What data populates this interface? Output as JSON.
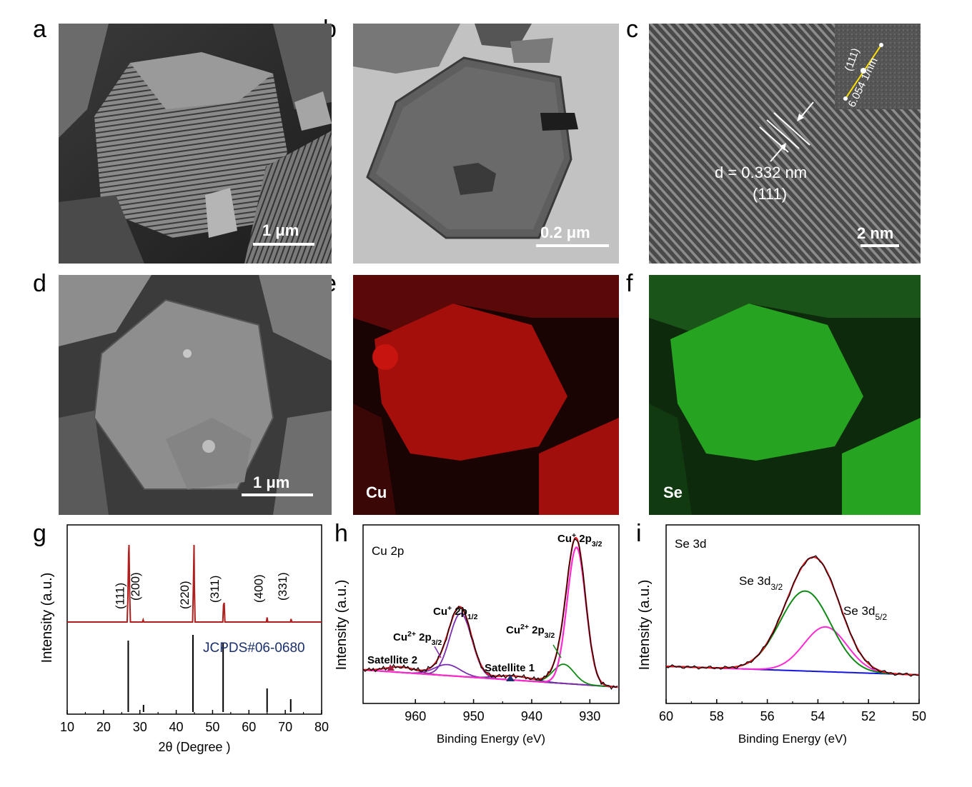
{
  "figure": {
    "letters": {
      "a": "a",
      "b": "b",
      "c": "c",
      "d": "d",
      "e": "e",
      "f": "f",
      "g": "g",
      "h": "h",
      "i": "i"
    }
  },
  "panel_a": {
    "scale_label": "1 μm"
  },
  "panel_b": {
    "scale_label": "0.2 μm"
  },
  "panel_c": {
    "scale_label": "2 nm",
    "d_spacing": "d = 0.332 nm",
    "plane": "(111)",
    "fft_plane": "(111)",
    "fft_distance": "6.054 1/nm"
  },
  "panel_d": {
    "scale_label": "1 μm"
  },
  "panel_e": {
    "element": "Cu",
    "map_color": "#c8120f"
  },
  "panel_f": {
    "element": "Se",
    "map_color": "#2fcf2a"
  },
  "colors": {
    "xrd": "#b01e1e",
    "ref_lines": "#000000",
    "jcpds_text": "#1a2f6e",
    "fit_total": "#e8111b",
    "raw": "#000000",
    "magenta": "#ff2bd0",
    "green": "#0f8a17",
    "purple": "#7b2fb0",
    "blue": "#1414e0",
    "brown": "#7b3a1f",
    "navy": "#1a2f6e"
  },
  "chart_data": [
    {
      "panel": "g",
      "type": "line",
      "xlabel": "2θ (Degree )",
      "ylabel": "Intensity   (a.u.)",
      "xlim": [
        10,
        80
      ],
      "xticks": [
        "10",
        "20",
        "30",
        "40",
        "50",
        "60",
        "70",
        "80"
      ],
      "series": [
        {
          "values_x": [
            10,
            26.5,
            26.7,
            26.9,
            27.0,
            27.2,
            27.4,
            30.7,
            30.9,
            31.1,
            44.5,
            44.7,
            44.9,
            45.0,
            45.2,
            52.8,
            53.0,
            53.2,
            53.4,
            64.8,
            65.0,
            65.2,
            71.4,
            71.6,
            71.8,
            80
          ],
          "values_y": [
            0,
            0,
            30,
            88,
            100,
            35,
            0,
            0,
            3,
            0,
            0,
            45,
            100,
            45,
            0,
            0,
            22,
            25,
            0,
            0,
            6,
            0,
            0,
            4,
            0,
            0
          ]
        }
      ],
      "reference": {
        "name": "JCPDS#06-0680",
        "x": [
          26.8,
          31.0,
          44.6,
          52.9,
          65.0,
          71.5
        ],
        "height": [
          100,
          10,
          108,
          96,
          33,
          18
        ]
      },
      "peak_labels": [
        {
          "x": 26.8,
          "text": "(111)"
        },
        {
          "x": 31.0,
          "text": "(200)"
        },
        {
          "x": 44.6,
          "text": "(220)"
        },
        {
          "x": 52.9,
          "text": "(311)"
        },
        {
          "x": 65.0,
          "text": "(400)"
        },
        {
          "x": 71.5,
          "text": "(331)"
        }
      ]
    },
    {
      "panel": "h",
      "type": "line",
      "title": "Cu 2p",
      "xlabel": "Binding Energy (eV)",
      "ylabel": "Intensity   (a.u.)",
      "xlim": [
        969,
        925
      ],
      "xticks": [
        "960",
        "950",
        "940",
        "930"
      ],
      "peaks": [
        {
          "name": "Cu+ 2p3/2",
          "center": 932.3,
          "height": 100,
          "width": 1.6
        },
        {
          "name": "Cu2+ 2p3/2",
          "center": 934.5,
          "height": 14,
          "width": 1.8
        },
        {
          "name": "Cu+ 2p1/2",
          "center": 952.2,
          "height": 46,
          "width": 1.9
        },
        {
          "name": "Cu2+ 2p3/2 (sat)",
          "center": 954.5,
          "height": 8,
          "width": 2.2
        },
        {
          "name": "Satellite 1",
          "center": 943.0,
          "height": 3,
          "width": 3.0
        },
        {
          "name": "Satellite 2",
          "center": 962.5,
          "height": 4,
          "width": 2.5
        }
      ],
      "annotations": [
        {
          "text": "Cu+ 2p3/2"
        },
        {
          "text": "Cu+ 2p1/2"
        },
        {
          "text": "Cu2+ 2p3/2"
        },
        {
          "text": "Cu2+ 2p3/2"
        },
        {
          "text": "Satellite 2"
        },
        {
          "text": "Satellite 1"
        }
      ]
    },
    {
      "panel": "i",
      "type": "line",
      "title": "Se 3d",
      "xlabel": "Binding Energy (eV)",
      "ylabel": "Intensity   (a.u.)",
      "xlim": [
        60,
        50
      ],
      "xticks": [
        "60",
        "58",
        "56",
        "54",
        "52",
        "50"
      ],
      "peaks": [
        {
          "name": "Se 3d3/2",
          "center": 54.5,
          "height": 100,
          "width": 1.0
        },
        {
          "name": "Se 3d5/2",
          "center": 53.7,
          "height": 56,
          "width": 0.85
        }
      ],
      "annotations": [
        {
          "text": "Se 3d3/2"
        },
        {
          "text": "Se 3d5/2"
        }
      ]
    }
  ]
}
